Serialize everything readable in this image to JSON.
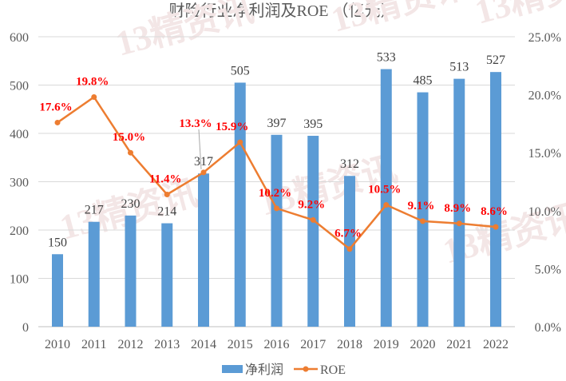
{
  "chart_data": {
    "type": "bar+line",
    "title": "财险行业净利润及ROE （亿元）",
    "categories": [
      "2010",
      "2011",
      "2012",
      "2013",
      "2014",
      "2015",
      "2016",
      "2017",
      "2018",
      "2019",
      "2020",
      "2021",
      "2022"
    ],
    "series": [
      {
        "name": "净利润",
        "type": "bar",
        "axis": "left",
        "color": "#5b9bd5",
        "values": [
          150,
          217,
          230,
          214,
          317,
          505,
          397,
          395,
          312,
          533,
          485,
          513,
          527
        ],
        "labels": [
          "150",
          "217",
          "230",
          "214",
          "317",
          "505",
          "397",
          "395",
          "312",
          "533",
          "485",
          "513",
          "527"
        ]
      },
      {
        "name": "ROE",
        "type": "line",
        "axis": "right",
        "color": "#ed7d31",
        "marker": "circle",
        "values": [
          17.6,
          19.8,
          15.0,
          11.4,
          13.3,
          15.9,
          10.2,
          9.2,
          6.7,
          10.5,
          9.1,
          8.9,
          8.6
        ],
        "labels": [
          "17.6%",
          "19.8%",
          "15.0%",
          "11.4%",
          "13.3%",
          "15.9%",
          "10.2%",
          "9.2%",
          "6.7%",
          "10.5%",
          "9.1%",
          "8.9%",
          "8.6%"
        ],
        "label_color": "#ff0000"
      }
    ],
    "y_left": {
      "lim": [
        0,
        600
      ],
      "ticks": [
        "0",
        "100",
        "200",
        "300",
        "400",
        "500",
        "600"
      ]
    },
    "y_right": {
      "lim": [
        0,
        25
      ],
      "ticks": [
        "0.0%",
        "5.0%",
        "10.0%",
        "15.0%",
        "20.0%",
        "25.0%"
      ]
    },
    "grid": true,
    "legend": "bottom",
    "watermark": "13精资讯"
  }
}
